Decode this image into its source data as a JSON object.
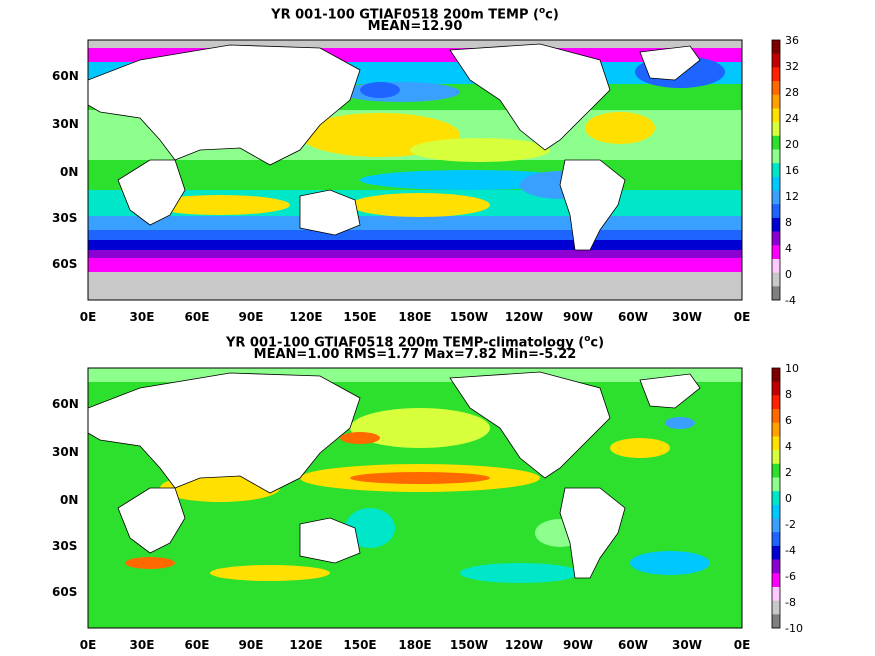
{
  "top_panel": {
    "title_prefix": "YR 001-100 GTIAF0518 200m TEMP (",
    "unit_sup": "o",
    "unit_rest": "c)",
    "subtitle": "MEAN=12.90",
    "colorbar_ticks": [
      "36",
      "32",
      "28",
      "24",
      "20",
      "16",
      "12",
      "8",
      "4",
      "0",
      "-4"
    ],
    "colorbar_colors": [
      "#800000",
      "#c00000",
      "#ff2000",
      "#ff6a00",
      "#ffa000",
      "#ffe000",
      "#d7ff3c",
      "#2ee02e",
      "#8cff8c",
      "#00e6c8",
      "#00c8ff",
      "#3aa0ff",
      "#1e64ff",
      "#0000d2",
      "#8c00d2",
      "#ff00ff",
      "#ffc8ff",
      "#c8c8c8",
      "#808080"
    ]
  },
  "bottom_panel": {
    "title_prefix": "YR 001-100 GTIAF0518 200m TEMP-climatology (",
    "unit_sup": "o",
    "unit_rest": "c)",
    "subtitle": "MEAN=1.00   RMS=1.77   Max=7.82   Min=-5.22",
    "colorbar_ticks": [
      "10",
      "8",
      "6",
      "4",
      "2",
      "0",
      "-2",
      "-4",
      "-6",
      "-8",
      "-10"
    ],
    "colorbar_colors": [
      "#800000",
      "#c00000",
      "#ff2000",
      "#ff6a00",
      "#ffa000",
      "#ffe000",
      "#d7ff3c",
      "#2ee02e",
      "#8cff8c",
      "#00e6c8",
      "#00c8ff",
      "#3aa0ff",
      "#1e64ff",
      "#0000d2",
      "#8c00d2",
      "#ff00ff",
      "#ffc8ff",
      "#c8c8c8",
      "#808080"
    ]
  },
  "x_ticks": [
    "0E",
    "30E",
    "60E",
    "90E",
    "120E",
    "150E",
    "180E",
    "150W",
    "120W",
    "90W",
    "60W",
    "30W",
    "0E"
  ],
  "y_ticks": [
    "60N",
    "30N",
    "0N",
    "30S",
    "60S"
  ]
}
